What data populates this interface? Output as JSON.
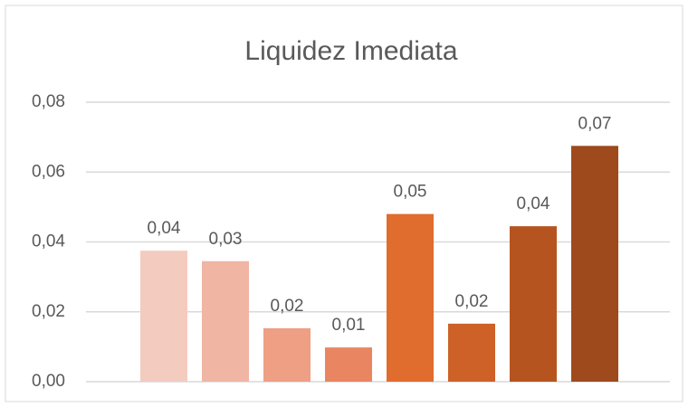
{
  "chart_data": {
    "type": "bar",
    "title": "Liquidez Imediata",
    "categories": [
      null,
      null,
      null,
      null,
      null,
      null,
      null,
      null
    ],
    "values": [
      0.0375,
      0.0345,
      0.0153,
      0.0098,
      0.048,
      0.0166,
      0.0445,
      0.0675
    ],
    "value_labels": [
      "0,04",
      "0,03",
      "0,02",
      "0,01",
      "0,05",
      "0,02",
      "0,04",
      "0,07"
    ],
    "colors": [
      "#f4cbbf",
      "#f1b5a4",
      "#ee9f84",
      "#ea8562",
      "#e06c2e",
      "#cd6128",
      "#b6541f",
      "#9e4a1d"
    ],
    "ylim": [
      0,
      0.08
    ],
    "yticks": [
      {
        "value": 0,
        "label": "0,00"
      },
      {
        "value": 0.02,
        "label": "0,02"
      },
      {
        "value": 0.04,
        "label": "0,04"
      },
      {
        "value": 0.06,
        "label": "0,06"
      },
      {
        "value": 0.08,
        "label": "0,08"
      }
    ],
    "grid": true
  }
}
